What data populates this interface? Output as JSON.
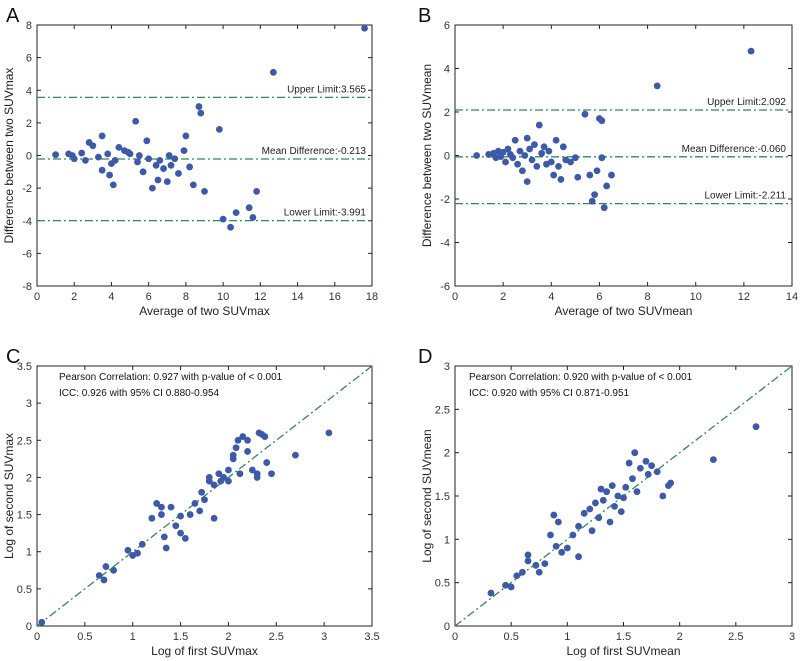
{
  "chart_data": [
    {
      "panel_label": "A",
      "type": "scatter",
      "xlabel": "Average of two SUVmax",
      "ylabel": "Difference between two SUVmax",
      "xlim": [
        0,
        18
      ],
      "ylim": [
        -8,
        8
      ],
      "xticks": [
        0,
        2,
        4,
        6,
        8,
        10,
        12,
        14,
        16,
        18
      ],
      "yticks": [
        -8,
        -6,
        -4,
        -2,
        0,
        2,
        4,
        6,
        8
      ],
      "reference_lines": [
        {
          "y": 3.565,
          "label": "Upper Limit:3.565"
        },
        {
          "y": -0.213,
          "label": "Mean Difference:-0.213"
        },
        {
          "y": -3.991,
          "label": "Lower Limit:-3.991"
        }
      ],
      "points": [
        [
          1.0,
          0.05
        ],
        [
          1.7,
          0.1
        ],
        [
          1.9,
          0.0
        ],
        [
          2.0,
          -0.2
        ],
        [
          2.4,
          0.15
        ],
        [
          2.6,
          -0.3
        ],
        [
          2.8,
          0.8
        ],
        [
          3.0,
          0.6
        ],
        [
          3.3,
          -0.1
        ],
        [
          3.5,
          1.2
        ],
        [
          3.5,
          -0.9
        ],
        [
          3.8,
          0.1
        ],
        [
          3.9,
          -1.2
        ],
        [
          4.0,
          -0.5
        ],
        [
          4.1,
          -1.8
        ],
        [
          4.2,
          -0.3
        ],
        [
          4.4,
          0.5
        ],
        [
          4.7,
          0.3
        ],
        [
          4.9,
          0.2
        ],
        [
          5.0,
          0.1
        ],
        [
          5.3,
          2.1
        ],
        [
          5.4,
          -0.4
        ],
        [
          5.5,
          0.0
        ],
        [
          5.7,
          -1.0
        ],
        [
          5.9,
          0.9
        ],
        [
          6.0,
          -0.2
        ],
        [
          6.2,
          -2.0
        ],
        [
          6.4,
          -0.6
        ],
        [
          6.5,
          -1.5
        ],
        [
          6.6,
          -0.3
        ],
        [
          6.8,
          -0.8
        ],
        [
          7.0,
          -1.6
        ],
        [
          7.1,
          0.0
        ],
        [
          7.2,
          -0.6
        ],
        [
          7.4,
          -0.2
        ],
        [
          7.6,
          -1.1
        ],
        [
          7.9,
          0.3
        ],
        [
          8.0,
          1.2
        ],
        [
          8.2,
          -0.7
        ],
        [
          8.4,
          -1.8
        ],
        [
          8.7,
          3.0
        ],
        [
          8.8,
          2.6
        ],
        [
          9.0,
          -2.2
        ],
        [
          9.8,
          1.6
        ],
        [
          10.0,
          -3.9
        ],
        [
          10.4,
          -4.4
        ],
        [
          10.7,
          -3.5
        ],
        [
          11.4,
          -3.2
        ],
        [
          11.6,
          -3.8
        ],
        [
          11.8,
          -2.2
        ],
        [
          12.7,
          5.1
        ],
        [
          17.6,
          7.8
        ]
      ]
    },
    {
      "panel_label": "B",
      "type": "scatter",
      "xlabel": "Average of two SUVmean",
      "ylabel": "Difference between two SUVmean",
      "xlim": [
        0,
        14
      ],
      "ylim": [
        -6,
        6
      ],
      "xticks": [
        0,
        2,
        4,
        6,
        8,
        10,
        12,
        14
      ],
      "yticks": [
        -6,
        -4,
        -2,
        0,
        2,
        4,
        6
      ],
      "reference_lines": [
        {
          "y": 2.092,
          "label": "Upper Limit:2.092"
        },
        {
          "y": -0.06,
          "label": "Mean Difference:-0.060"
        },
        {
          "y": -2.211,
          "label": "Lower Limit:-2.211"
        }
      ],
      "points": [
        [
          0.9,
          0.0
        ],
        [
          1.4,
          0.05
        ],
        [
          1.6,
          0.1
        ],
        [
          1.7,
          -0.1
        ],
        [
          1.8,
          0.2
        ],
        [
          1.9,
          -0.05
        ],
        [
          2.0,
          0.15
        ],
        [
          2.1,
          -0.3
        ],
        [
          2.2,
          0.3
        ],
        [
          2.3,
          0.05
        ],
        [
          2.4,
          -0.1
        ],
        [
          2.5,
          0.7
        ],
        [
          2.6,
          -0.4
        ],
        [
          2.7,
          0.2
        ],
        [
          2.8,
          -0.7
        ],
        [
          2.9,
          0.0
        ],
        [
          3.0,
          0.8
        ],
        [
          3.0,
          -1.2
        ],
        [
          3.1,
          0.3
        ],
        [
          3.2,
          -0.2
        ],
        [
          3.3,
          0.5
        ],
        [
          3.4,
          -0.5
        ],
        [
          3.5,
          1.4
        ],
        [
          3.6,
          0.1
        ],
        [
          3.7,
          0.4
        ],
        [
          3.8,
          -0.4
        ],
        [
          3.9,
          0.2
        ],
        [
          4.0,
          -0.3
        ],
        [
          4.1,
          -0.9
        ],
        [
          4.2,
          0.7
        ],
        [
          4.3,
          -0.5
        ],
        [
          4.4,
          -1.1
        ],
        [
          4.5,
          0.4
        ],
        [
          4.6,
          -0.2
        ],
        [
          4.8,
          -0.3
        ],
        [
          5.0,
          -0.1
        ],
        [
          5.1,
          -1.0
        ],
        [
          5.4,
          1.9
        ],
        [
          5.6,
          -0.9
        ],
        [
          5.7,
          -2.1
        ],
        [
          5.8,
          -1.8
        ],
        [
          5.9,
          -0.7
        ],
        [
          6.0,
          1.7
        ],
        [
          6.1,
          1.6
        ],
        [
          6.1,
          -0.1
        ],
        [
          6.2,
          -2.4
        ],
        [
          6.3,
          -1.4
        ],
        [
          6.5,
          -0.9
        ],
        [
          8.4,
          3.2
        ],
        [
          12.3,
          4.8
        ]
      ]
    },
    {
      "panel_label": "C",
      "type": "scatter",
      "xlabel": "Log of first SUVmax",
      "ylabel": "Log of second SUVmax",
      "xlim": [
        0,
        3.5
      ],
      "ylim": [
        0,
        3.5
      ],
      "xticks": [
        0,
        0.5,
        1,
        1.5,
        2,
        2.5,
        3,
        3.5
      ],
      "yticks": [
        0,
        0.5,
        1,
        1.5,
        2,
        2.5,
        3,
        3.5
      ],
      "annotations": [
        "Pearson Correlation: 0.927 with p-value of < 0.001",
        "ICC: 0.926 with 95% CI 0.880-0.954"
      ],
      "identity_line": true,
      "points": [
        [
          0.05,
          0.05
        ],
        [
          0.65,
          0.68
        ],
        [
          0.7,
          0.62
        ],
        [
          0.72,
          0.8
        ],
        [
          0.8,
          0.75
        ],
        [
          0.95,
          1.02
        ],
        [
          1.0,
          0.95
        ],
        [
          1.05,
          0.98
        ],
        [
          1.1,
          1.1
        ],
        [
          1.2,
          1.45
        ],
        [
          1.25,
          1.65
        ],
        [
          1.3,
          1.5
        ],
        [
          1.3,
          1.6
        ],
        [
          1.33,
          1.2
        ],
        [
          1.35,
          1.05
        ],
        [
          1.4,
          1.6
        ],
        [
          1.45,
          1.35
        ],
        [
          1.5,
          1.48
        ],
        [
          1.5,
          1.25
        ],
        [
          1.55,
          1.18
        ],
        [
          1.6,
          1.5
        ],
        [
          1.65,
          1.65
        ],
        [
          1.7,
          1.55
        ],
        [
          1.72,
          1.8
        ],
        [
          1.75,
          1.7
        ],
        [
          1.8,
          1.95
        ],
        [
          1.8,
          2.0
        ],
        [
          1.85,
          1.45
        ],
        [
          1.85,
          1.9
        ],
        [
          1.9,
          2.05
        ],
        [
          1.92,
          1.95
        ],
        [
          1.95,
          2.0
        ],
        [
          2.0,
          2.1
        ],
        [
          2.0,
          1.95
        ],
        [
          2.05,
          2.3
        ],
        [
          2.05,
          2.25
        ],
        [
          2.08,
          2.4
        ],
        [
          2.1,
          2.5
        ],
        [
          2.12,
          2.05
        ],
        [
          2.15,
          2.55
        ],
        [
          2.2,
          2.5
        ],
        [
          2.2,
          2.35
        ],
        [
          2.25,
          2.1
        ],
        [
          2.3,
          2.05
        ],
        [
          2.3,
          2.0
        ],
        [
          2.32,
          2.6
        ],
        [
          2.35,
          2.58
        ],
        [
          2.38,
          2.55
        ],
        [
          2.4,
          2.2
        ],
        [
          2.45,
          2.05
        ],
        [
          2.7,
          2.3
        ],
        [
          3.05,
          2.6
        ]
      ]
    },
    {
      "panel_label": "D",
      "type": "scatter",
      "xlabel": "Log of first SUVmean",
      "ylabel": "Log of second SUVmean",
      "xlim": [
        0,
        3
      ],
      "ylim": [
        0,
        3
      ],
      "xticks": [
        0,
        0.5,
        1,
        1.5,
        2,
        2.5,
        3
      ],
      "yticks": [
        0,
        0.5,
        1,
        1.5,
        2,
        2.5,
        3
      ],
      "annotations": [
        "Pearson Correlation: 0.920 with p-value of < 0.001",
        "ICC: 0.920 with 95% CI 0.871-0.951"
      ],
      "identity_line": true,
      "points": [
        [
          0.32,
          0.38
        ],
        [
          0.45,
          0.47
        ],
        [
          0.5,
          0.45
        ],
        [
          0.55,
          0.58
        ],
        [
          0.6,
          0.62
        ],
        [
          0.65,
          0.75
        ],
        [
          0.65,
          0.82
        ],
        [
          0.72,
          0.7
        ],
        [
          0.75,
          0.62
        ],
        [
          0.8,
          0.72
        ],
        [
          0.85,
          1.05
        ],
        [
          0.88,
          1.28
        ],
        [
          0.9,
          0.92
        ],
        [
          0.92,
          1.2
        ],
        [
          0.95,
          0.85
        ],
        [
          1.0,
          0.9
        ],
        [
          1.05,
          1.05
        ],
        [
          1.1,
          0.8
        ],
        [
          1.1,
          1.15
        ],
        [
          1.15,
          1.3
        ],
        [
          1.2,
          1.35
        ],
        [
          1.22,
          1.1
        ],
        [
          1.25,
          1.42
        ],
        [
          1.28,
          1.25
        ],
        [
          1.3,
          1.58
        ],
        [
          1.32,
          1.45
        ],
        [
          1.35,
          1.55
        ],
        [
          1.38,
          1.2
        ],
        [
          1.4,
          1.62
        ],
        [
          1.42,
          1.38
        ],
        [
          1.45,
          1.5
        ],
        [
          1.48,
          1.32
        ],
        [
          1.5,
          1.48
        ],
        [
          1.52,
          1.6
        ],
        [
          1.55,
          1.88
        ],
        [
          1.58,
          1.7
        ],
        [
          1.6,
          2.0
        ],
        [
          1.62,
          1.55
        ],
        [
          1.65,
          1.82
        ],
        [
          1.7,
          1.9
        ],
        [
          1.72,
          1.75
        ],
        [
          1.75,
          1.85
        ],
        [
          1.8,
          1.78
        ],
        [
          1.85,
          1.5
        ],
        [
          1.9,
          1.62
        ],
        [
          1.92,
          1.65
        ],
        [
          2.3,
          1.92
        ],
        [
          2.68,
          2.3
        ]
      ]
    }
  ]
}
